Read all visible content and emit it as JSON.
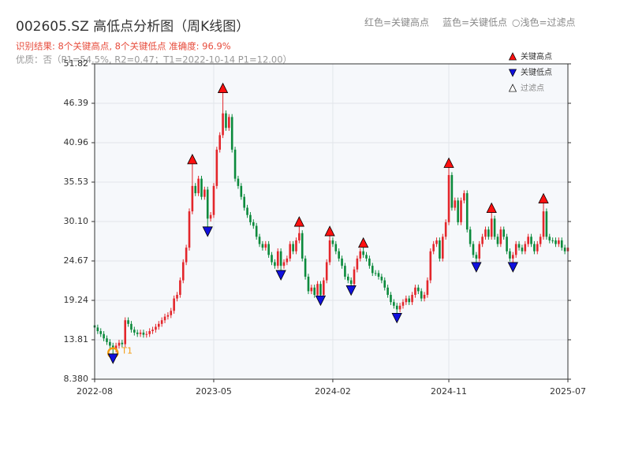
{
  "chart_data": {
    "type": "candlestick",
    "title": "002605.SZ 高低点分析图（周K线图）",
    "subtitle": "识别结果: 8个关键高点, 8个关键低点   准确度: 96.9%",
    "note": "优质：否（P1=54.5%, R2=0.47；T1=2022-10-14 P1=12.00）",
    "color_key": [
      "红色=关键高点",
      "蓝色=关键低点",
      "○浅色=过滤点"
    ],
    "up_color": "#e3262b",
    "down_color": "#0b8a3c",
    "ohlc": [
      [
        15.8,
        16.2,
        15.1,
        15.5
      ],
      [
        15.5,
        15.9,
        14.6,
        15.0
      ],
      [
        15.0,
        15.4,
        14.2,
        14.6
      ],
      [
        14.6,
        15.0,
        13.6,
        14.0
      ],
      [
        14.0,
        14.4,
        13.1,
        13.5
      ],
      [
        13.5,
        13.9,
        12.6,
        13.0
      ],
      [
        13.0,
        13.4,
        11.6,
        12.5
      ],
      [
        12.5,
        13.4,
        12.1,
        13.0
      ],
      [
        13.0,
        13.8,
        12.6,
        13.4
      ],
      [
        13.4,
        13.8,
        12.8,
        13.2
      ],
      [
        13.2,
        16.9,
        12.8,
        16.5
      ],
      [
        16.5,
        16.9,
        15.6,
        16.0
      ],
      [
        16.0,
        16.4,
        14.8,
        15.2
      ],
      [
        15.2,
        15.6,
        14.4,
        14.8
      ],
      [
        14.8,
        15.2,
        14.2,
        14.6
      ],
      [
        14.6,
        15.2,
        14.2,
        14.8
      ],
      [
        14.8,
        15.2,
        14.1,
        14.5
      ],
      [
        14.5,
        15.0,
        14.1,
        14.6
      ],
      [
        14.6,
        15.4,
        14.2,
        15.0
      ],
      [
        15.0,
        15.6,
        14.6,
        15.2
      ],
      [
        15.2,
        16.0,
        14.8,
        15.6
      ],
      [
        15.6,
        16.4,
        15.2,
        16.0
      ],
      [
        16.0,
        16.9,
        15.6,
        16.5
      ],
      [
        16.5,
        17.4,
        16.1,
        17.0
      ],
      [
        17.0,
        17.6,
        16.6,
        17.2
      ],
      [
        17.2,
        18.2,
        16.8,
        17.8
      ],
      [
        17.8,
        19.9,
        17.4,
        19.5
      ],
      [
        19.5,
        20.4,
        19.1,
        20.0
      ],
      [
        20.0,
        22.4,
        19.6,
        22.0
      ],
      [
        22.0,
        24.9,
        21.6,
        24.5
      ],
      [
        24.5,
        26.9,
        24.1,
        26.5
      ],
      [
        26.5,
        31.9,
        26.1,
        31.5
      ],
      [
        31.5,
        38.3,
        31.1,
        35.0
      ],
      [
        35.0,
        35.4,
        33.6,
        34.0
      ],
      [
        34.0,
        36.4,
        33.6,
        36.0
      ],
      [
        36.0,
        36.4,
        33.1,
        33.5
      ],
      [
        33.5,
        34.9,
        33.1,
        34.5
      ],
      [
        34.5,
        34.9,
        29.1,
        30.5
      ],
      [
        30.5,
        31.4,
        30.1,
        31.0
      ],
      [
        31.0,
        35.4,
        30.6,
        35.0
      ],
      [
        35.0,
        40.4,
        34.6,
        40.0
      ],
      [
        40.0,
        42.4,
        39.6,
        42.0
      ],
      [
        42.0,
        48.1,
        41.6,
        45.0
      ],
      [
        45.0,
        45.4,
        42.6,
        43.0
      ],
      [
        43.0,
        44.9,
        42.6,
        44.5
      ],
      [
        44.5,
        44.9,
        39.6,
        40.0
      ],
      [
        40.0,
        40.4,
        35.6,
        36.0
      ],
      [
        36.0,
        36.4,
        34.6,
        35.0
      ],
      [
        35.0,
        35.4,
        33.1,
        33.5
      ],
      [
        33.5,
        33.9,
        31.6,
        32.0
      ],
      [
        32.0,
        32.4,
        30.6,
        31.0
      ],
      [
        31.0,
        31.4,
        29.6,
        30.0
      ],
      [
        30.0,
        30.4,
        29.1,
        29.5
      ],
      [
        29.5,
        29.9,
        27.6,
        28.0
      ],
      [
        28.0,
        28.4,
        26.6,
        27.0
      ],
      [
        27.0,
        27.4,
        26.1,
        26.5
      ],
      [
        26.5,
        27.4,
        26.1,
        27.0
      ],
      [
        27.0,
        27.4,
        25.1,
        25.5
      ],
      [
        25.5,
        25.9,
        24.1,
        24.5
      ],
      [
        24.5,
        24.9,
        23.6,
        24.0
      ],
      [
        24.0,
        26.4,
        23.6,
        26.0
      ],
      [
        26.0,
        26.4,
        23.1,
        24.0
      ],
      [
        24.0,
        24.9,
        23.6,
        24.5
      ],
      [
        24.5,
        25.4,
        24.1,
        25.0
      ],
      [
        25.0,
        27.4,
        24.6,
        27.0
      ],
      [
        27.0,
        27.4,
        25.6,
        26.0
      ],
      [
        26.0,
        27.9,
        25.6,
        27.5
      ],
      [
        27.5,
        29.7,
        27.1,
        28.5
      ],
      [
        28.5,
        28.9,
        24.6,
        25.0
      ],
      [
        25.0,
        25.4,
        22.1,
        22.5
      ],
      [
        22.5,
        22.9,
        20.1,
        20.5
      ],
      [
        20.5,
        21.4,
        20.1,
        21.0
      ],
      [
        21.0,
        21.4,
        19.6,
        20.0
      ],
      [
        20.0,
        21.9,
        19.6,
        21.5
      ],
      [
        21.5,
        21.9,
        19.6,
        20.0
      ],
      [
        20.0,
        22.4,
        19.6,
        22.0
      ],
      [
        22.0,
        24.9,
        21.6,
        24.5
      ],
      [
        24.5,
        28.4,
        24.1,
        27.5
      ],
      [
        27.5,
        27.9,
        26.6,
        27.0
      ],
      [
        27.0,
        27.4,
        25.6,
        26.0
      ],
      [
        26.0,
        26.4,
        24.6,
        25.0
      ],
      [
        25.0,
        25.4,
        23.6,
        24.0
      ],
      [
        24.0,
        24.4,
        22.1,
        22.5
      ],
      [
        22.5,
        22.9,
        21.6,
        22.0
      ],
      [
        22.0,
        22.4,
        21.0,
        21.5
      ],
      [
        21.5,
        23.9,
        21.1,
        23.5
      ],
      [
        23.5,
        25.4,
        23.1,
        25.0
      ],
      [
        25.0,
        26.4,
        24.6,
        26.0
      ],
      [
        26.0,
        26.8,
        25.1,
        25.5
      ],
      [
        25.5,
        25.9,
        24.6,
        25.0
      ],
      [
        25.0,
        25.4,
        23.6,
        24.0
      ],
      [
        24.0,
        24.4,
        22.6,
        23.0
      ],
      [
        23.0,
        23.4,
        22.6,
        23.0
      ],
      [
        23.0,
        23.4,
        22.1,
        22.5
      ],
      [
        22.5,
        22.9,
        21.6,
        22.0
      ],
      [
        22.0,
        22.4,
        20.6,
        21.0
      ],
      [
        21.0,
        21.4,
        19.6,
        20.0
      ],
      [
        20.0,
        20.4,
        18.6,
        19.0
      ],
      [
        19.0,
        19.4,
        18.1,
        18.5
      ],
      [
        18.5,
        18.9,
        17.2,
        18.0
      ],
      [
        18.0,
        18.9,
        17.6,
        18.5
      ],
      [
        18.5,
        19.4,
        18.1,
        19.0
      ],
      [
        19.0,
        19.9,
        18.6,
        19.5
      ],
      [
        19.5,
        19.9,
        18.6,
        19.0
      ],
      [
        19.0,
        20.4,
        18.6,
        20.0
      ],
      [
        20.0,
        21.4,
        19.6,
        21.0
      ],
      [
        21.0,
        21.4,
        20.1,
        20.5
      ],
      [
        20.5,
        20.9,
        19.1,
        19.5
      ],
      [
        19.5,
        20.4,
        19.1,
        20.0
      ],
      [
        20.0,
        22.4,
        19.6,
        22.0
      ],
      [
        22.0,
        26.4,
        21.6,
        26.0
      ],
      [
        26.0,
        27.4,
        25.6,
        27.0
      ],
      [
        27.0,
        27.9,
        26.6,
        27.5
      ],
      [
        27.5,
        27.9,
        24.6,
        25.0
      ],
      [
        25.0,
        28.4,
        24.6,
        28.0
      ],
      [
        28.0,
        30.4,
        27.6,
        30.0
      ],
      [
        30.0,
        37.8,
        29.6,
        36.5
      ],
      [
        36.5,
        36.9,
        31.6,
        32.0
      ],
      [
        32.0,
        33.4,
        31.6,
        33.0
      ],
      [
        33.0,
        33.4,
        29.6,
        30.0
      ],
      [
        30.0,
        33.4,
        29.6,
        33.0
      ],
      [
        33.0,
        34.4,
        32.6,
        34.0
      ],
      [
        34.0,
        34.4,
        28.6,
        29.0
      ],
      [
        29.0,
        29.4,
        26.6,
        27.0
      ],
      [
        27.0,
        27.4,
        25.1,
        25.5
      ],
      [
        25.5,
        25.9,
        24.2,
        25.0
      ],
      [
        25.0,
        27.4,
        24.6,
        27.0
      ],
      [
        27.0,
        28.4,
        26.6,
        28.0
      ],
      [
        28.0,
        29.4,
        27.6,
        29.0
      ],
      [
        29.0,
        29.4,
        27.6,
        28.0
      ],
      [
        28.0,
        31.6,
        27.6,
        30.5
      ],
      [
        30.5,
        30.9,
        27.6,
        28.0
      ],
      [
        28.0,
        28.4,
        26.6,
        27.0
      ],
      [
        27.0,
        29.4,
        26.6,
        29.0
      ],
      [
        29.0,
        29.4,
        27.6,
        28.0
      ],
      [
        28.0,
        28.4,
        25.6,
        26.0
      ],
      [
        26.0,
        26.4,
        24.6,
        25.0
      ],
      [
        25.0,
        25.9,
        24.2,
        25.5
      ],
      [
        25.5,
        27.4,
        25.1,
        27.0
      ],
      [
        27.0,
        27.4,
        26.1,
        26.5
      ],
      [
        26.5,
        26.9,
        25.6,
        26.0
      ],
      [
        26.0,
        27.4,
        25.6,
        27.0
      ],
      [
        27.0,
        28.4,
        26.6,
        28.0
      ],
      [
        28.0,
        28.4,
        26.6,
        27.0
      ],
      [
        27.0,
        27.4,
        25.6,
        26.0
      ],
      [
        26.0,
        27.4,
        25.6,
        27.0
      ],
      [
        27.0,
        28.4,
        26.6,
        28.0
      ],
      [
        28.0,
        32.9,
        27.6,
        31.5
      ],
      [
        31.5,
        31.9,
        27.6,
        28.0
      ],
      [
        28.0,
        28.4,
        27.1,
        27.5
      ],
      [
        27.5,
        27.9,
        27.1,
        27.5
      ],
      [
        27.5,
        27.9,
        26.6,
        27.0
      ],
      [
        27.0,
        27.9,
        26.6,
        27.5
      ],
      [
        27.5,
        27.9,
        26.1,
        26.5
      ],
      [
        26.5,
        26.9,
        25.6,
        26.0
      ],
      [
        26.0,
        26.9,
        25.6,
        26.5
      ]
    ],
    "key_highs": {
      "name": "关键高点",
      "color": "#ff1010",
      "x": [
        32,
        42,
        67,
        77,
        88,
        116,
        130,
        147
      ],
      "values": [
        38.3,
        48.1,
        29.7,
        28.4,
        26.8,
        37.8,
        31.6,
        32.9
      ]
    },
    "key_lows": {
      "name": "关键低点",
      "color": "#1010dd",
      "x": [
        6,
        37,
        61,
        74,
        84,
        99,
        125,
        137
      ],
      "values": [
        11.6,
        29.1,
        23.1,
        19.6,
        21.0,
        17.2,
        24.2,
        24.2
      ]
    },
    "filtered": {
      "name": "过滤点",
      "color": "#ffffff"
    },
    "annotation": {
      "label": "T1",
      "x": 6,
      "value": 12.0,
      "color": "#f39c12"
    },
    "xlim": [
      0,
      155
    ],
    "xticks": [
      {
        "value": 0,
        "label": "2022-08"
      },
      {
        "value": 39,
        "label": "2023-05"
      },
      {
        "value": 78,
        "label": "2024-02"
      },
      {
        "value": 116,
        "label": "2024-11"
      },
      {
        "value": 155,
        "label": "2025-07"
      }
    ],
    "ylim": [
      8.38,
      51.82
    ],
    "yticks": [
      {
        "value": 8.38,
        "label": "8.380"
      },
      13.81,
      19.24,
      24.67,
      {
        "value": 30.1,
        "label": "30.10"
      },
      35.53,
      40.96,
      46.39,
      51.82
    ],
    "grid": true
  }
}
